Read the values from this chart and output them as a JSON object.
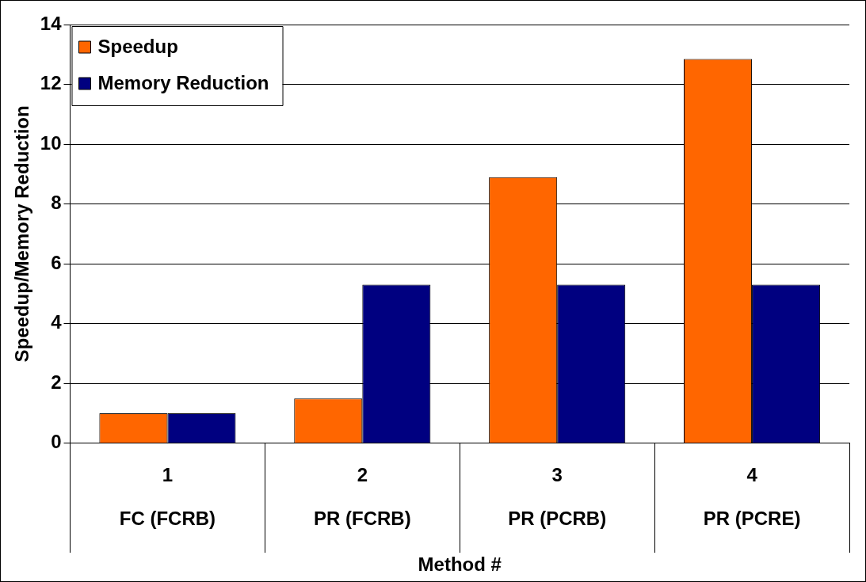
{
  "chart_data": {
    "type": "bar",
    "xlabel": "Method #",
    "ylabel": "Speedup/Memory Reduction",
    "categories": [
      "1\nFC (FCRB)",
      "2\nPR (FCRB)",
      "3\nPR (PCRB)",
      "4\nPR (PCRE)"
    ],
    "series": [
      {
        "name": "Speedup",
        "color": "#ff6600",
        "values": [
          1,
          1.5,
          8.9,
          12.85
        ]
      },
      {
        "name": "Memory Reduction",
        "color": "#000080",
        "values": [
          1,
          5.3,
          5.3,
          5.3
        ]
      }
    ],
    "ylim": [
      0,
      14
    ],
    "yticks": [
      0,
      2,
      4,
      6,
      8,
      10,
      12,
      14
    ],
    "grid": "y",
    "legend": "top left"
  }
}
